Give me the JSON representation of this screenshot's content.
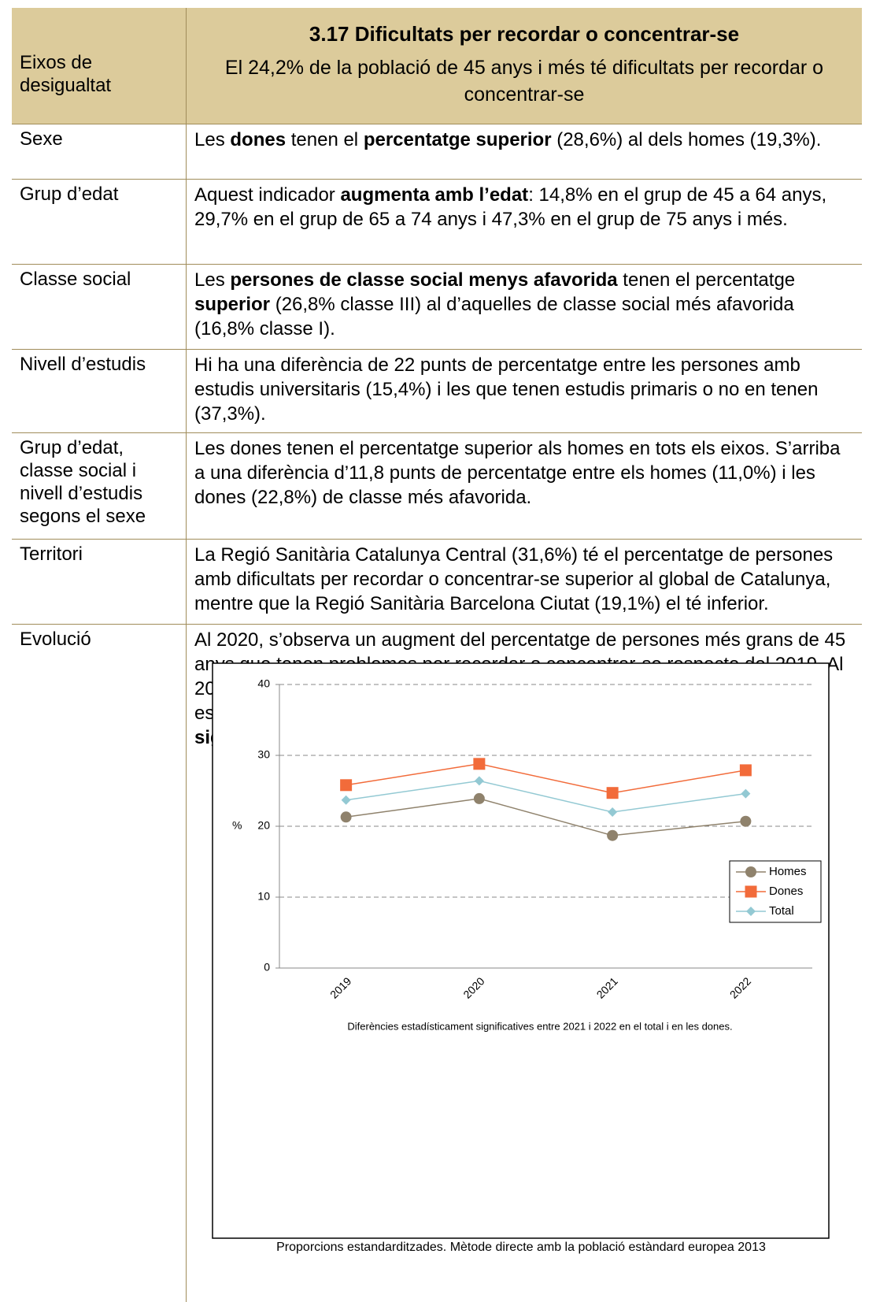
{
  "table": {
    "header": {
      "axis_label": "Eixos de desigualtat",
      "title": "3.17 Dificultats per recordar o concentrar-se",
      "subtitle": "El 24,2% de la població de 45 anys i més té dificultats per recordar o concentrar-se"
    },
    "rows": [
      {
        "label": "Sexe",
        "text": [
          "Les ",
          {
            "text": "dones",
            "bold": true
          },
          " tenen el ",
          {
            "text": "percentatge superior",
            "bold": true
          },
          " (28,6%) al dels homes (19,3%)."
        ]
      },
      {
        "label": "Grup d’edat",
        "text": [
          "Aquest indicador ",
          {
            "text": "augmenta amb l’edat",
            "bold": true
          },
          ": 14,8% en el grup de 45 a 64 anys, 29,7% en el grup de 65 a 74 anys i 47,3% en el grup de 75 anys i més."
        ]
      },
      {
        "label": "Classe social",
        "text": [
          "Les ",
          {
            "text": "persones de classe social menys afavorida",
            "bold": true
          },
          " tenen el percentatge ",
          {
            "text": "superior",
            "bold": true
          },
          " (26,8% classe III) al d’aquelles de classe social més afavorida (16,8% classe I)."
        ]
      },
      {
        "label": "Nivell d’estudis",
        "text": [
          "Hi ha una diferència de 22 punts de percentatge entre les persones amb estudis universitaris (15,4%) i les que tenen estudis primaris o no en tenen (37,3%)."
        ]
      },
      {
        "label": "Grup d’edat, classe social i nivell d’estudis segons el sexe",
        "text": [
          "Les dones tenen el percentatge superior als homes en tots els eixos. S’arriba a una diferència d’11,8 punts de percentatge entre els homes (11,0%) i les dones (22,8%) de classe més afavorida."
        ]
      },
      {
        "label": "Territori",
        "text": [
          "La Regió Sanitària Catalunya Central (31,6%) té el percentatge de persones amb dificultats per recordar o concentrar-se superior al global de Catalunya, mentre que la Regió Sanitària Barcelona Ciutat (19,1%) el té inferior."
        ]
      },
      {
        "label": "Evolució",
        "text": [
          "Al 2020, s’observa un augment del percentatge de persones més grans de 45 anys que tenen problemes per recordar o concentrar-se respecte del 2019. Al 2021, se situa en els valors del 2019 i al 2022 s’observa un augment, especialment en les dones. ",
          {
            "text": "S’han trobat diferències estadísticament significatives entre el 2021 i el 2022 en el total i en les dones.",
            "bold": true
          }
        ]
      }
    ]
  },
  "chart_data": {
    "type": "line",
    "ylabel": "%",
    "categories": [
      "2019",
      "2020",
      "2021",
      "2022"
    ],
    "series": [
      {
        "name": "Homes",
        "color": "#8f826c",
        "marker": "circle",
        "values": [
          21.3,
          23.9,
          18.7,
          20.7
        ]
      },
      {
        "name": "Dones",
        "color": "#f26b3a",
        "marker": "square",
        "values": [
          25.8,
          28.8,
          24.7,
          27.9
        ]
      },
      {
        "name": "Total",
        "color": "#93c9d3",
        "marker": "diamond",
        "values": [
          23.7,
          26.4,
          22.0,
          24.6
        ]
      }
    ],
    "ylim": [
      0,
      40
    ],
    "yticks": [
      0,
      10,
      20,
      30,
      40
    ],
    "grid": true,
    "legend": "right",
    "note": "Diferències estadísticament significatives entre 2021 i 2022  en el total i en les dones.",
    "footnote": "Proporcions estandarditzades. Mètode directe amb la població estàndard europea 2013"
  }
}
